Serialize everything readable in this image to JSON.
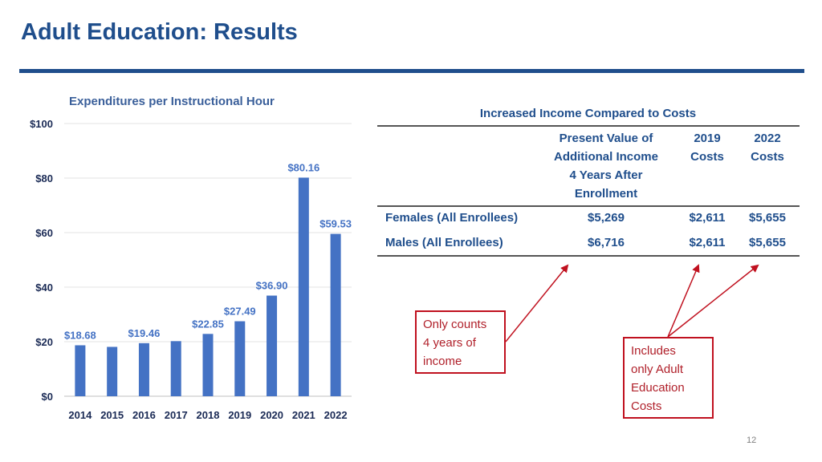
{
  "slide": {
    "title": "Adult Education: Results",
    "page_number": "12"
  },
  "chart_data": {
    "type": "bar",
    "title": "Expenditures per Instructional Hour",
    "categories": [
      "2014",
      "2015",
      "2016",
      "2017",
      "2018",
      "2019",
      "2020",
      "2021",
      "2022"
    ],
    "values": [
      18.68,
      18.1,
      19.46,
      20.2,
      22.85,
      27.49,
      36.9,
      80.16,
      59.53
    ],
    "data_labels": [
      "$18.68",
      "",
      "$19.46",
      "",
      "$22.85",
      "$27.49",
      "$36.90",
      "$80.16",
      "$59.53"
    ],
    "ytick_labels": [
      "$0",
      "$20",
      "$40",
      "$60",
      "$80",
      "$100"
    ],
    "ylim": [
      0,
      100
    ],
    "bar_color": "#4472c4",
    "grid": true,
    "legend": "none"
  },
  "table": {
    "title": "Increased Income Compared to Costs",
    "headers": [
      "Present Value of Additional Income 4 Years After Enrollment",
      "2019 Costs",
      "2022 Costs"
    ],
    "header_lines": [
      [
        "Present Value of",
        "Additional Income",
        "4 Years After",
        "Enrollment"
      ],
      [
        "2019",
        "Costs"
      ],
      [
        "2022",
        "Costs"
      ]
    ],
    "rows": [
      {
        "label": "Females (All Enrollees)",
        "present_value": "$5,269",
        "cost_2019": "$2,611",
        "cost_2022": "$5,655"
      },
      {
        "label": "Males (All Enrollees)",
        "present_value": "$6,716",
        "cost_2019": "$2,611",
        "cost_2022": "$5,655"
      }
    ]
  },
  "callouts": {
    "income_note": [
      "Only counts",
      "4 years of",
      "income"
    ],
    "cost_note": [
      "Includes",
      "only Adult",
      "Education",
      "Costs"
    ],
    "border_color": "#c0111f"
  }
}
